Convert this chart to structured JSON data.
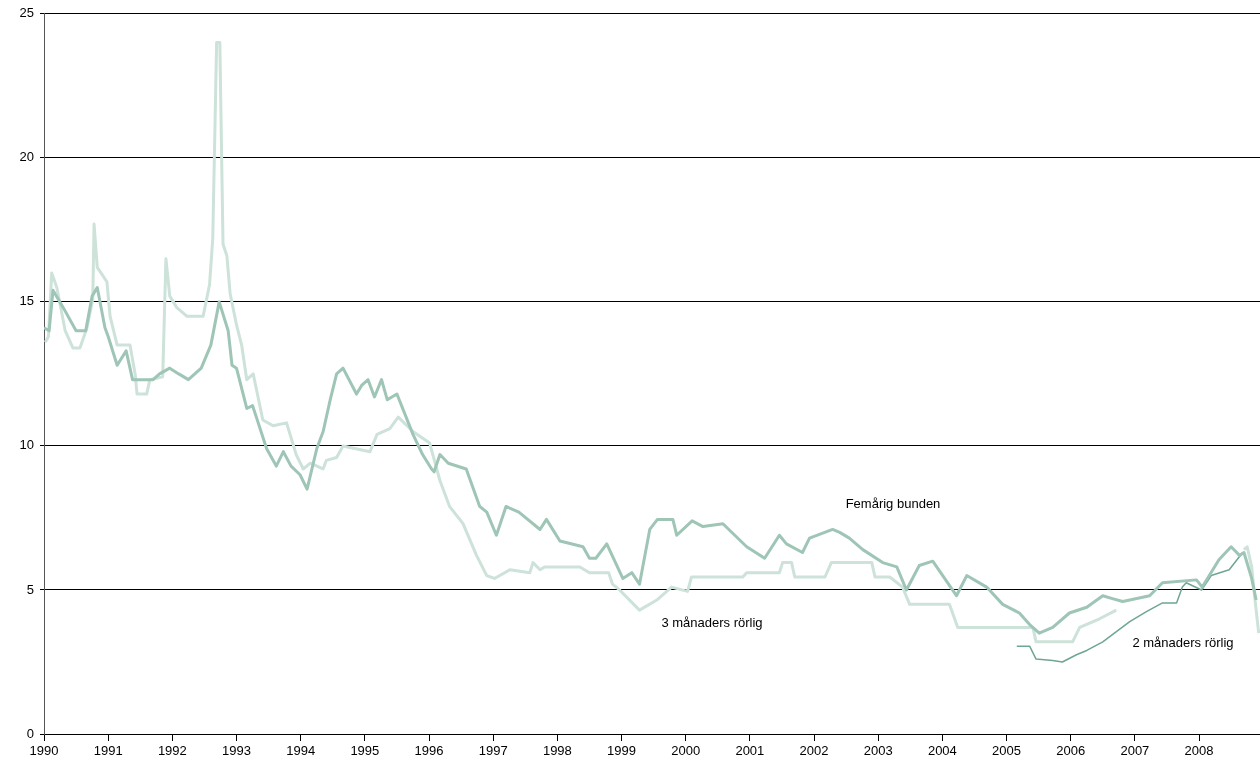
{
  "chart_data": {
    "type": "line",
    "xlim": [
      1990,
      2008.95
    ],
    "xticks": [
      1990,
      1991,
      1992,
      1993,
      1994,
      1995,
      1996,
      1997,
      1998,
      1999,
      2000,
      2001,
      2002,
      2003,
      2004,
      2005,
      2006,
      2007,
      2008
    ],
    "ylim": [
      0,
      25
    ],
    "yticks": [
      0,
      5,
      10,
      15,
      20,
      25
    ],
    "grid": "y",
    "marker": "none",
    "series": [
      {
        "name": "Femårig bunden",
        "color": "#9ec5b5",
        "x": [
          1990,
          1990.08,
          1990.14,
          1990.3,
          1990.5,
          1990.65,
          1990.75,
          1990.83,
          1990.95,
          1991.0,
          1991.14,
          1991.28,
          1991.38,
          1991.7,
          1991.8,
          1991.96,
          1992.1,
          1992.25,
          1992.45,
          1992.6,
          1992.73,
          1992.87,
          1992.93,
          1993.0,
          1993.16,
          1993.25,
          1993.47,
          1993.62,
          1993.73,
          1993.85,
          1993.99,
          1994.1,
          1994.25,
          1994.35,
          1994.46,
          1994.56,
          1994.66,
          1994.87,
          1994.95,
          1995.05,
          1995.15,
          1995.26,
          1995.35,
          1995.5,
          1995.75,
          1995.9,
          1996.04,
          1996.08,
          1996.17,
          1996.3,
          1996.58,
          1996.79,
          1996.9,
          1997.05,
          1997.2,
          1997.4,
          1997.73,
          1997.83,
          1998.04,
          1998.4,
          1998.5,
          1998.6,
          1998.77,
          1999.02,
          1999.16,
          1999.28,
          1999.44,
          1999.56,
          1999.8,
          1999.86,
          2000.1,
          2000.27,
          2000.58,
          2000.95,
          2001.23,
          2001.46,
          2001.57,
          2001.82,
          2001.93,
          2002.29,
          2002.4,
          2002.55,
          2002.76,
          2003.07,
          2003.29,
          2003.44,
          2003.64,
          2003.85,
          2004.22,
          2004.38,
          2004.69,
          2004.94,
          2005.2,
          2005.36,
          2005.51,
          2005.72,
          2005.98,
          2006.25,
          2006.5,
          2006.65,
          2006.81,
          2007.23,
          2007.43,
          2007.96,
          2008.05,
          2008.31,
          2008.5,
          2008.63,
          2008.7,
          2008.82,
          2008.89
        ],
        "values": [
          14.1,
          14.0,
          15.4,
          14.8,
          14.0,
          14.0,
          15.2,
          15.5,
          14.1,
          13.8,
          12.8,
          13.3,
          12.3,
          12.3,
          12.5,
          12.7,
          12.5,
          12.3,
          12.7,
          13.5,
          15.0,
          14.0,
          12.8,
          12.7,
          11.3,
          11.4,
          9.9,
          9.3,
          9.8,
          9.3,
          9.0,
          8.5,
          9.9,
          10.5,
          11.6,
          12.5,
          12.7,
          11.8,
          12.1,
          12.3,
          11.7,
          12.3,
          11.6,
          11.8,
          10.4,
          9.7,
          9.2,
          9.1,
          9.7,
          9.4,
          9.2,
          7.9,
          7.7,
          6.9,
          7.9,
          7.7,
          7.1,
          7.45,
          6.7,
          6.5,
          6.1,
          6.1,
          6.6,
          5.4,
          5.6,
          5.2,
          7.1,
          7.45,
          7.45,
          6.9,
          7.4,
          7.2,
          7.3,
          6.5,
          6.1,
          6.9,
          6.6,
          6.3,
          6.8,
          7.1,
          7.0,
          6.8,
          6.4,
          5.95,
          5.8,
          5.0,
          5.85,
          6.0,
          4.8,
          5.5,
          5.1,
          4.5,
          4.2,
          3.8,
          3.5,
          3.7,
          4.2,
          4.4,
          4.8,
          4.7,
          4.6,
          4.8,
          5.25,
          5.35,
          5.1,
          6.05,
          6.5,
          6.2,
          6.3,
          5.4,
          4.65
        ]
      },
      {
        "name": "3 månaders rörlig",
        "color": "#cde2d9",
        "x": [
          1990.02,
          1990.07,
          1990.12,
          1990.2,
          1990.33,
          1990.45,
          1990.56,
          1990.67,
          1990.76,
          1990.78,
          1990.83,
          1990.98,
          1991.03,
          1991.14,
          1991.34,
          1991.42,
          1991.45,
          1991.6,
          1991.65,
          1991.85,
          1991.9,
          1991.96,
          1992.07,
          1992.23,
          1992.48,
          1992.58,
          1992.63,
          1992.69,
          1992.74,
          1992.79,
          1992.85,
          1992.9,
          1993.0,
          1993.08,
          1993.16,
          1993.26,
          1993.41,
          1993.57,
          1993.78,
          1993.93,
          1994.04,
          1994.15,
          1994.35,
          1994.4,
          1994.56,
          1994.66,
          1995.08,
          1995.19,
          1995.39,
          1995.52,
          1995.75,
          1996.01,
          1996.17,
          1996.32,
          1996.53,
          1996.74,
          1996.9,
          1997.02,
          1997.26,
          1997.57,
          1997.62,
          1997.73,
          1997.8,
          1998.35,
          1998.5,
          1998.8,
          1998.86,
          1998.97,
          1999.28,
          1999.55,
          1999.78,
          2000.03,
          2000.09,
          2000.89,
          2000.95,
          2001.46,
          2001.51,
          2001.65,
          2001.7,
          2002.17,
          2002.27,
          2002.9,
          2002.95,
          2003.18,
          2003.38,
          2003.49,
          2004.11,
          2004.24,
          2005.41,
          2005.46,
          2006.03,
          2006.14,
          2006.45,
          2006.71,
          2006.72,
          2008.6,
          2008.7,
          2008.75,
          2008.82,
          2008.88,
          2008.93
        ],
        "values": [
          13.6,
          13.8,
          16.0,
          15.5,
          14.0,
          13.4,
          13.4,
          14.1,
          15.1,
          17.7,
          16.2,
          15.7,
          14.5,
          13.5,
          13.5,
          12.5,
          11.8,
          11.8,
          12.3,
          12.4,
          16.5,
          15.2,
          14.8,
          14.5,
          14.5,
          15.6,
          17.2,
          24.0,
          24.0,
          17.0,
          16.6,
          15.3,
          14.2,
          13.5,
          12.3,
          12.5,
          10.9,
          10.7,
          10.8,
          9.7,
          9.2,
          9.4,
          9.2,
          9.5,
          9.6,
          10.0,
          9.8,
          10.4,
          10.6,
          11.0,
          10.5,
          10.1,
          8.8,
          7.9,
          7.3,
          6.2,
          5.5,
          5.4,
          5.7,
          5.6,
          5.95,
          5.7,
          5.8,
          5.8,
          5.6,
          5.6,
          5.2,
          5.0,
          4.3,
          4.65,
          5.1,
          4.95,
          5.45,
          5.45,
          5.6,
          5.6,
          5.95,
          5.95,
          5.45,
          5.45,
          5.95,
          5.95,
          5.45,
          5.45,
          5.1,
          4.5,
          4.5,
          3.7,
          3.7,
          3.2,
          3.2,
          3.7,
          4.0,
          4.3,
          null,
          null,
          6.4,
          6.5,
          5.8,
          4.5,
          3.5
        ]
      },
      {
        "name": "2 månaders rörlig",
        "color": "#6fa593",
        "x": [
          2005.16,
          2005.36,
          2005.46,
          2005.72,
          2005.87,
          2006.09,
          2006.25,
          2006.5,
          2006.65,
          2006.92,
          2007.18,
          2007.43,
          2007.65,
          2007.74,
          2007.8,
          2008.04,
          2008.19,
          2008.47,
          2008.68
        ],
        "values": [
          3.05,
          3.05,
          2.6,
          2.55,
          2.5,
          2.75,
          2.9,
          3.2,
          3.45,
          3.9,
          4.25,
          4.55,
          4.55,
          5.1,
          5.25,
          5.0,
          5.5,
          5.7,
          6.3
        ]
      }
    ]
  }
}
